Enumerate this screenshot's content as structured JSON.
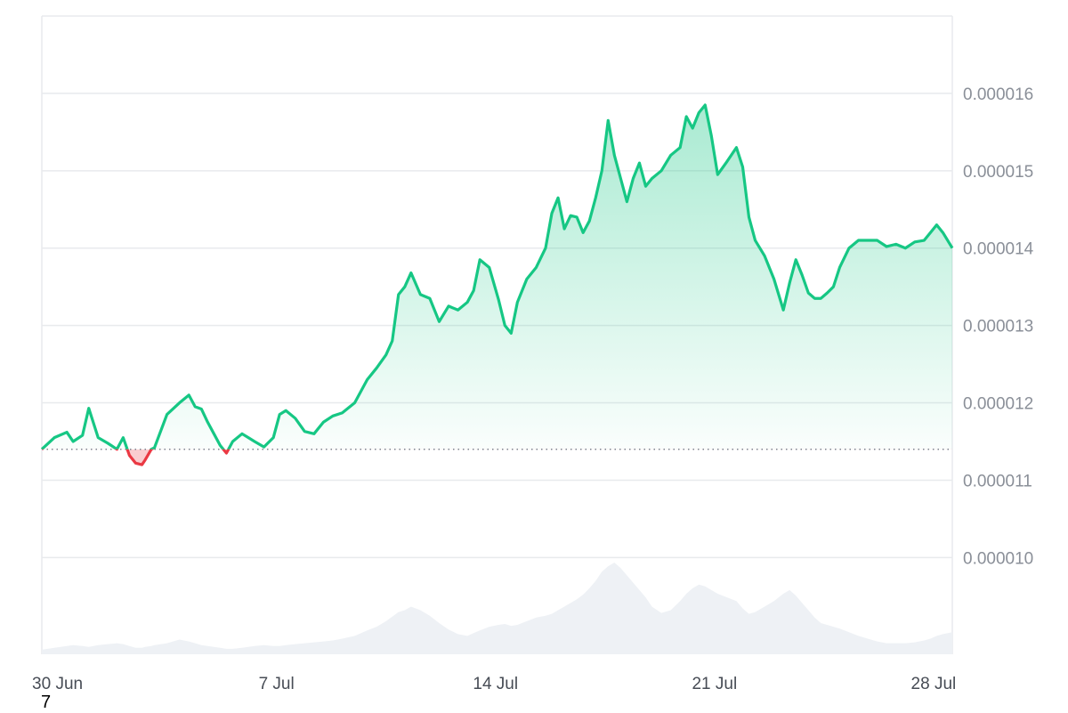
{
  "chart_data": {
    "type": "area",
    "x_ticks": [
      "30 Jun",
      "7 Jul",
      "14 Jul",
      "21 Jul",
      "28 Jul"
    ],
    "x_tick_days": [
      1,
      8,
      15,
      22,
      29
    ],
    "x_range_days": [
      0.5,
      29.6
    ],
    "y_ticks": [
      "0.000010",
      "0.000011",
      "0.000012",
      "0.000013",
      "0.000014",
      "0.000015",
      "0.000016"
    ],
    "y_tick_values": [
      1e-05,
      1.1e-05,
      1.2e-05,
      1.3e-05,
      1.4e-05,
      1.5e-05,
      1.6e-05
    ],
    "y_range": [
      8.75e-06,
      1.7e-05
    ],
    "baseline": 1.14e-05,
    "grid": true,
    "colors": {
      "up_line": "#16c784",
      "down_line": "#ea3943",
      "up_fill": "#16c784",
      "down_fill": "#ea3943",
      "volume": "#eef1f5",
      "grid": "#e8eaed",
      "baseline": "#7f8590"
    },
    "price": {
      "x_days": [
        0.5,
        0.9,
        1.3,
        1.5,
        1.8,
        2.0,
        2.3,
        2.6,
        2.9,
        3.1,
        3.3,
        3.5,
        3.7,
        3.8,
        4.0,
        4.1,
        4.5,
        4.9,
        5.2,
        5.4,
        5.6,
        5.8,
        6.0,
        6.2,
        6.4,
        6.6,
        6.9,
        7.1,
        7.3,
        7.6,
        7.9,
        8.1,
        8.3,
        8.6,
        8.9,
        9.2,
        9.5,
        9.8,
        10.1,
        10.5,
        10.9,
        11.2,
        11.5,
        11.7,
        11.9,
        12.1,
        12.3,
        12.6,
        12.9,
        13.2,
        13.5,
        13.8,
        14.1,
        14.3,
        14.5,
        14.8,
        15.1,
        15.3,
        15.5,
        15.7,
        16.0,
        16.3,
        16.6,
        16.8,
        17.0,
        17.2,
        17.4,
        17.6,
        17.8,
        18.0,
        18.2,
        18.4,
        18.6,
        18.8,
        19.0,
        19.2,
        19.4,
        19.6,
        19.8,
        20.0,
        20.3,
        20.6,
        20.9,
        21.1,
        21.3,
        21.5,
        21.7,
        21.9,
        22.1,
        22.4,
        22.7,
        22.9,
        23.1,
        23.3,
        23.6,
        23.9,
        24.2,
        24.4,
        24.6,
        24.8,
        25.0,
        25.2,
        25.4,
        25.6,
        25.8,
        26.0,
        26.3,
        26.6,
        26.9,
        27.2,
        27.5,
        27.8,
        28.1,
        28.4,
        28.7,
        28.9,
        29.1,
        29.3,
        29.6
      ],
      "values": [
        1.14e-05,
        1.155e-05,
        1.162e-05,
        1.15e-05,
        1.158e-05,
        1.193e-05,
        1.155e-05,
        1.148e-05,
        1.14e-05,
        1.155e-05,
        1.132e-05,
        1.122e-05,
        1.12e-05,
        1.126e-05,
        1.14e-05,
        1.142e-05,
        1.185e-05,
        1.2e-05,
        1.21e-05,
        1.195e-05,
        1.192e-05,
        1.175e-05,
        1.16e-05,
        1.145e-05,
        1.135e-05,
        1.15e-05,
        1.16e-05,
        1.155e-05,
        1.15e-05,
        1.143e-05,
        1.155e-05,
        1.185e-05,
        1.19e-05,
        1.18e-05,
        1.163e-05,
        1.16e-05,
        1.175e-05,
        1.183e-05,
        1.187e-05,
        1.2e-05,
        1.23e-05,
        1.245e-05,
        1.262e-05,
        1.28e-05,
        1.34e-05,
        1.35e-05,
        1.368e-05,
        1.34e-05,
        1.335e-05,
        1.305e-05,
        1.325e-05,
        1.32e-05,
        1.33e-05,
        1.345e-05,
        1.385e-05,
        1.375e-05,
        1.333e-05,
        1.3e-05,
        1.29e-05,
        1.33e-05,
        1.36e-05,
        1.375e-05,
        1.4e-05,
        1.445e-05,
        1.465e-05,
        1.425e-05,
        1.442e-05,
        1.44e-05,
        1.42e-05,
        1.435e-05,
        1.465e-05,
        1.5e-05,
        1.565e-05,
        1.52e-05,
        1.49e-05,
        1.46e-05,
        1.49e-05,
        1.51e-05,
        1.48e-05,
        1.49e-05,
        1.5e-05,
        1.52e-05,
        1.53e-05,
        1.57e-05,
        1.555e-05,
        1.575e-05,
        1.585e-05,
        1.545e-05,
        1.495e-05,
        1.512e-05,
        1.53e-05,
        1.505e-05,
        1.44e-05,
        1.41e-05,
        1.39e-05,
        1.36e-05,
        1.32e-05,
        1.355e-05,
        1.385e-05,
        1.365e-05,
        1.342e-05,
        1.335e-05,
        1.335e-05,
        1.342e-05,
        1.35e-05,
        1.375e-05,
        1.4e-05,
        1.41e-05,
        1.41e-05,
        1.41e-05,
        1.402e-05,
        1.405e-05,
        1.4e-05,
        1.408e-05,
        1.41e-05,
        1.42e-05,
        1.43e-05,
        1.42e-05,
        1.4e-05
      ],
      "volume_levels": [
        0.05,
        0.07,
        0.09,
        0.1,
        0.09,
        0.08,
        0.1,
        0.11,
        0.12,
        0.11,
        0.09,
        0.07,
        0.07,
        0.08,
        0.09,
        0.1,
        0.12,
        0.16,
        0.14,
        0.12,
        0.1,
        0.09,
        0.08,
        0.07,
        0.06,
        0.06,
        0.07,
        0.08,
        0.09,
        0.1,
        0.09,
        0.09,
        0.1,
        0.11,
        0.12,
        0.13,
        0.14,
        0.15,
        0.17,
        0.2,
        0.26,
        0.3,
        0.36,
        0.41,
        0.46,
        0.48,
        0.52,
        0.48,
        0.42,
        0.34,
        0.27,
        0.22,
        0.2,
        0.23,
        0.26,
        0.3,
        0.32,
        0.33,
        0.31,
        0.32,
        0.36,
        0.4,
        0.42,
        0.44,
        0.48,
        0.52,
        0.56,
        0.6,
        0.65,
        0.72,
        0.8,
        0.9,
        0.96,
        1.0,
        0.94,
        0.86,
        0.78,
        0.7,
        0.62,
        0.52,
        0.45,
        0.48,
        0.58,
        0.66,
        0.72,
        0.76,
        0.74,
        0.7,
        0.66,
        0.62,
        0.58,
        0.5,
        0.44,
        0.46,
        0.52,
        0.58,
        0.66,
        0.7,
        0.64,
        0.56,
        0.48,
        0.4,
        0.34,
        0.32,
        0.3,
        0.28,
        0.24,
        0.2,
        0.17,
        0.14,
        0.12,
        0.12,
        0.12,
        0.13,
        0.15,
        0.17,
        0.2,
        0.22,
        0.24
      ]
    }
  },
  "footnote": "7"
}
